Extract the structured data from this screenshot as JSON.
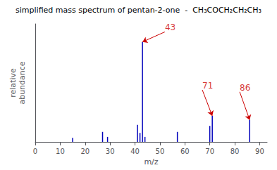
{
  "chart_data": {
    "type": "bar",
    "title": "simplified mass spectrum of pentan-2-one  -  CH₃COCH₂CH₂CH₃",
    "x_label": "m/z",
    "y_label": "relative\nabundance",
    "x": [
      15,
      27,
      29,
      41,
      42,
      43,
      44,
      57,
      70,
      71,
      86
    ],
    "values": [
      0.04,
      0.1,
      0.05,
      0.17,
      0.09,
      1.0,
      0.05,
      0.1,
      0.16,
      0.26,
      0.22
    ],
    "color": "#0000bb",
    "xlim": [
      0,
      93
    ],
    "xticks": [
      0,
      10,
      20,
      30,
      40,
      50,
      60,
      70,
      80,
      90
    ],
    "ylim": [
      0,
      1.18
    ],
    "tick_labels": "x",
    "grid": false,
    "annotations": [
      {
        "text": "43",
        "x": 43,
        "y": 1.0,
        "text_x": 52,
        "text_y": 1.1,
        "color": "#cc0000"
      },
      {
        "text": "71",
        "x": 71,
        "y": 0.26,
        "text_x": 67,
        "text_y": 0.52,
        "color": "#cc0000"
      },
      {
        "text": "86",
        "x": 86,
        "y": 0.22,
        "text_x": 82,
        "text_y": 0.5,
        "color": "#cc0000"
      }
    ]
  }
}
